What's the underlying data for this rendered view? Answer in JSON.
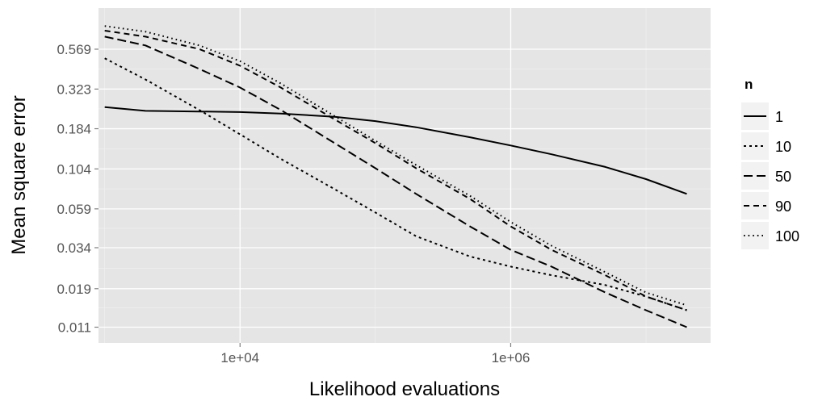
{
  "chart_data": {
    "type": "line",
    "xlabel": "Likelihood evaluations",
    "ylabel": "Mean square error",
    "x_scale": "log10",
    "y_scale": "log",
    "xlim": [
      900,
      30000000
    ],
    "ylim": [
      0.0088,
      1.02
    ],
    "x_ticks": [
      {
        "value": 10000,
        "label": "1e+04"
      },
      {
        "value": 1000000,
        "label": "1e+06"
      }
    ],
    "y_ticks": [
      {
        "value": 0.569,
        "label": "0.569"
      },
      {
        "value": 0.323,
        "label": "0.323"
      },
      {
        "value": 0.184,
        "label": "0.184"
      },
      {
        "value": 0.104,
        "label": "0.104"
      },
      {
        "value": 0.059,
        "label": "0.059"
      },
      {
        "value": 0.034,
        "label": "0.034"
      },
      {
        "value": 0.019,
        "label": "0.019"
      },
      {
        "value": 0.011,
        "label": "0.011"
      }
    ],
    "grid": true,
    "legend": {
      "title": "n",
      "position": "right"
    },
    "series": [
      {
        "name": "1",
        "dash": "solid",
        "x": [
          1000,
          2000,
          5000,
          10000,
          20000,
          50000,
          100000,
          200000,
          500000,
          1000000,
          2000000,
          5000000,
          10000000,
          20000000
        ],
        "y": [
          0.25,
          0.237,
          0.235,
          0.233,
          0.228,
          0.218,
          0.205,
          0.188,
          0.163,
          0.145,
          0.128,
          0.107,
          0.09,
          0.073
        ]
      },
      {
        "name": "10",
        "dash": "short-dash",
        "x": [
          1000,
          2000,
          5000,
          10000,
          20000,
          50000,
          100000,
          200000,
          500000,
          1000000,
          2000000,
          5000000,
          10000000,
          20000000
        ],
        "y": [
          0.5,
          0.37,
          0.24,
          0.17,
          0.12,
          0.078,
          0.056,
          0.04,
          0.03,
          0.026,
          0.023,
          0.02,
          0.017,
          0.014
        ]
      },
      {
        "name": "50",
        "dash": "long-dash",
        "x": [
          1000,
          2000,
          5000,
          10000,
          20000,
          50000,
          100000,
          200000,
          500000,
          1000000,
          2000000,
          5000000,
          10000000,
          20000000
        ],
        "y": [
          0.68,
          0.6,
          0.43,
          0.33,
          0.24,
          0.15,
          0.105,
          0.073,
          0.046,
          0.033,
          0.026,
          0.018,
          0.014,
          0.011
        ]
      },
      {
        "name": "90",
        "dash": "medium-dash",
        "x": [
          1000,
          2000,
          5000,
          10000,
          20000,
          50000,
          100000,
          200000,
          500000,
          1000000,
          2000000,
          5000000,
          10000000,
          20000000
        ],
        "y": [
          0.74,
          0.68,
          0.57,
          0.45,
          0.33,
          0.21,
          0.15,
          0.105,
          0.068,
          0.046,
          0.033,
          0.023,
          0.017,
          0.014
        ]
      },
      {
        "name": "100",
        "dash": "dotted",
        "x": [
          1000,
          2000,
          5000,
          10000,
          20000,
          50000,
          100000,
          200000,
          500000,
          1000000,
          2000000,
          5000000,
          10000000,
          20000000
        ],
        "y": [
          0.79,
          0.73,
          0.6,
          0.48,
          0.35,
          0.22,
          0.155,
          0.11,
          0.071,
          0.049,
          0.035,
          0.024,
          0.018,
          0.015
        ]
      }
    ]
  }
}
